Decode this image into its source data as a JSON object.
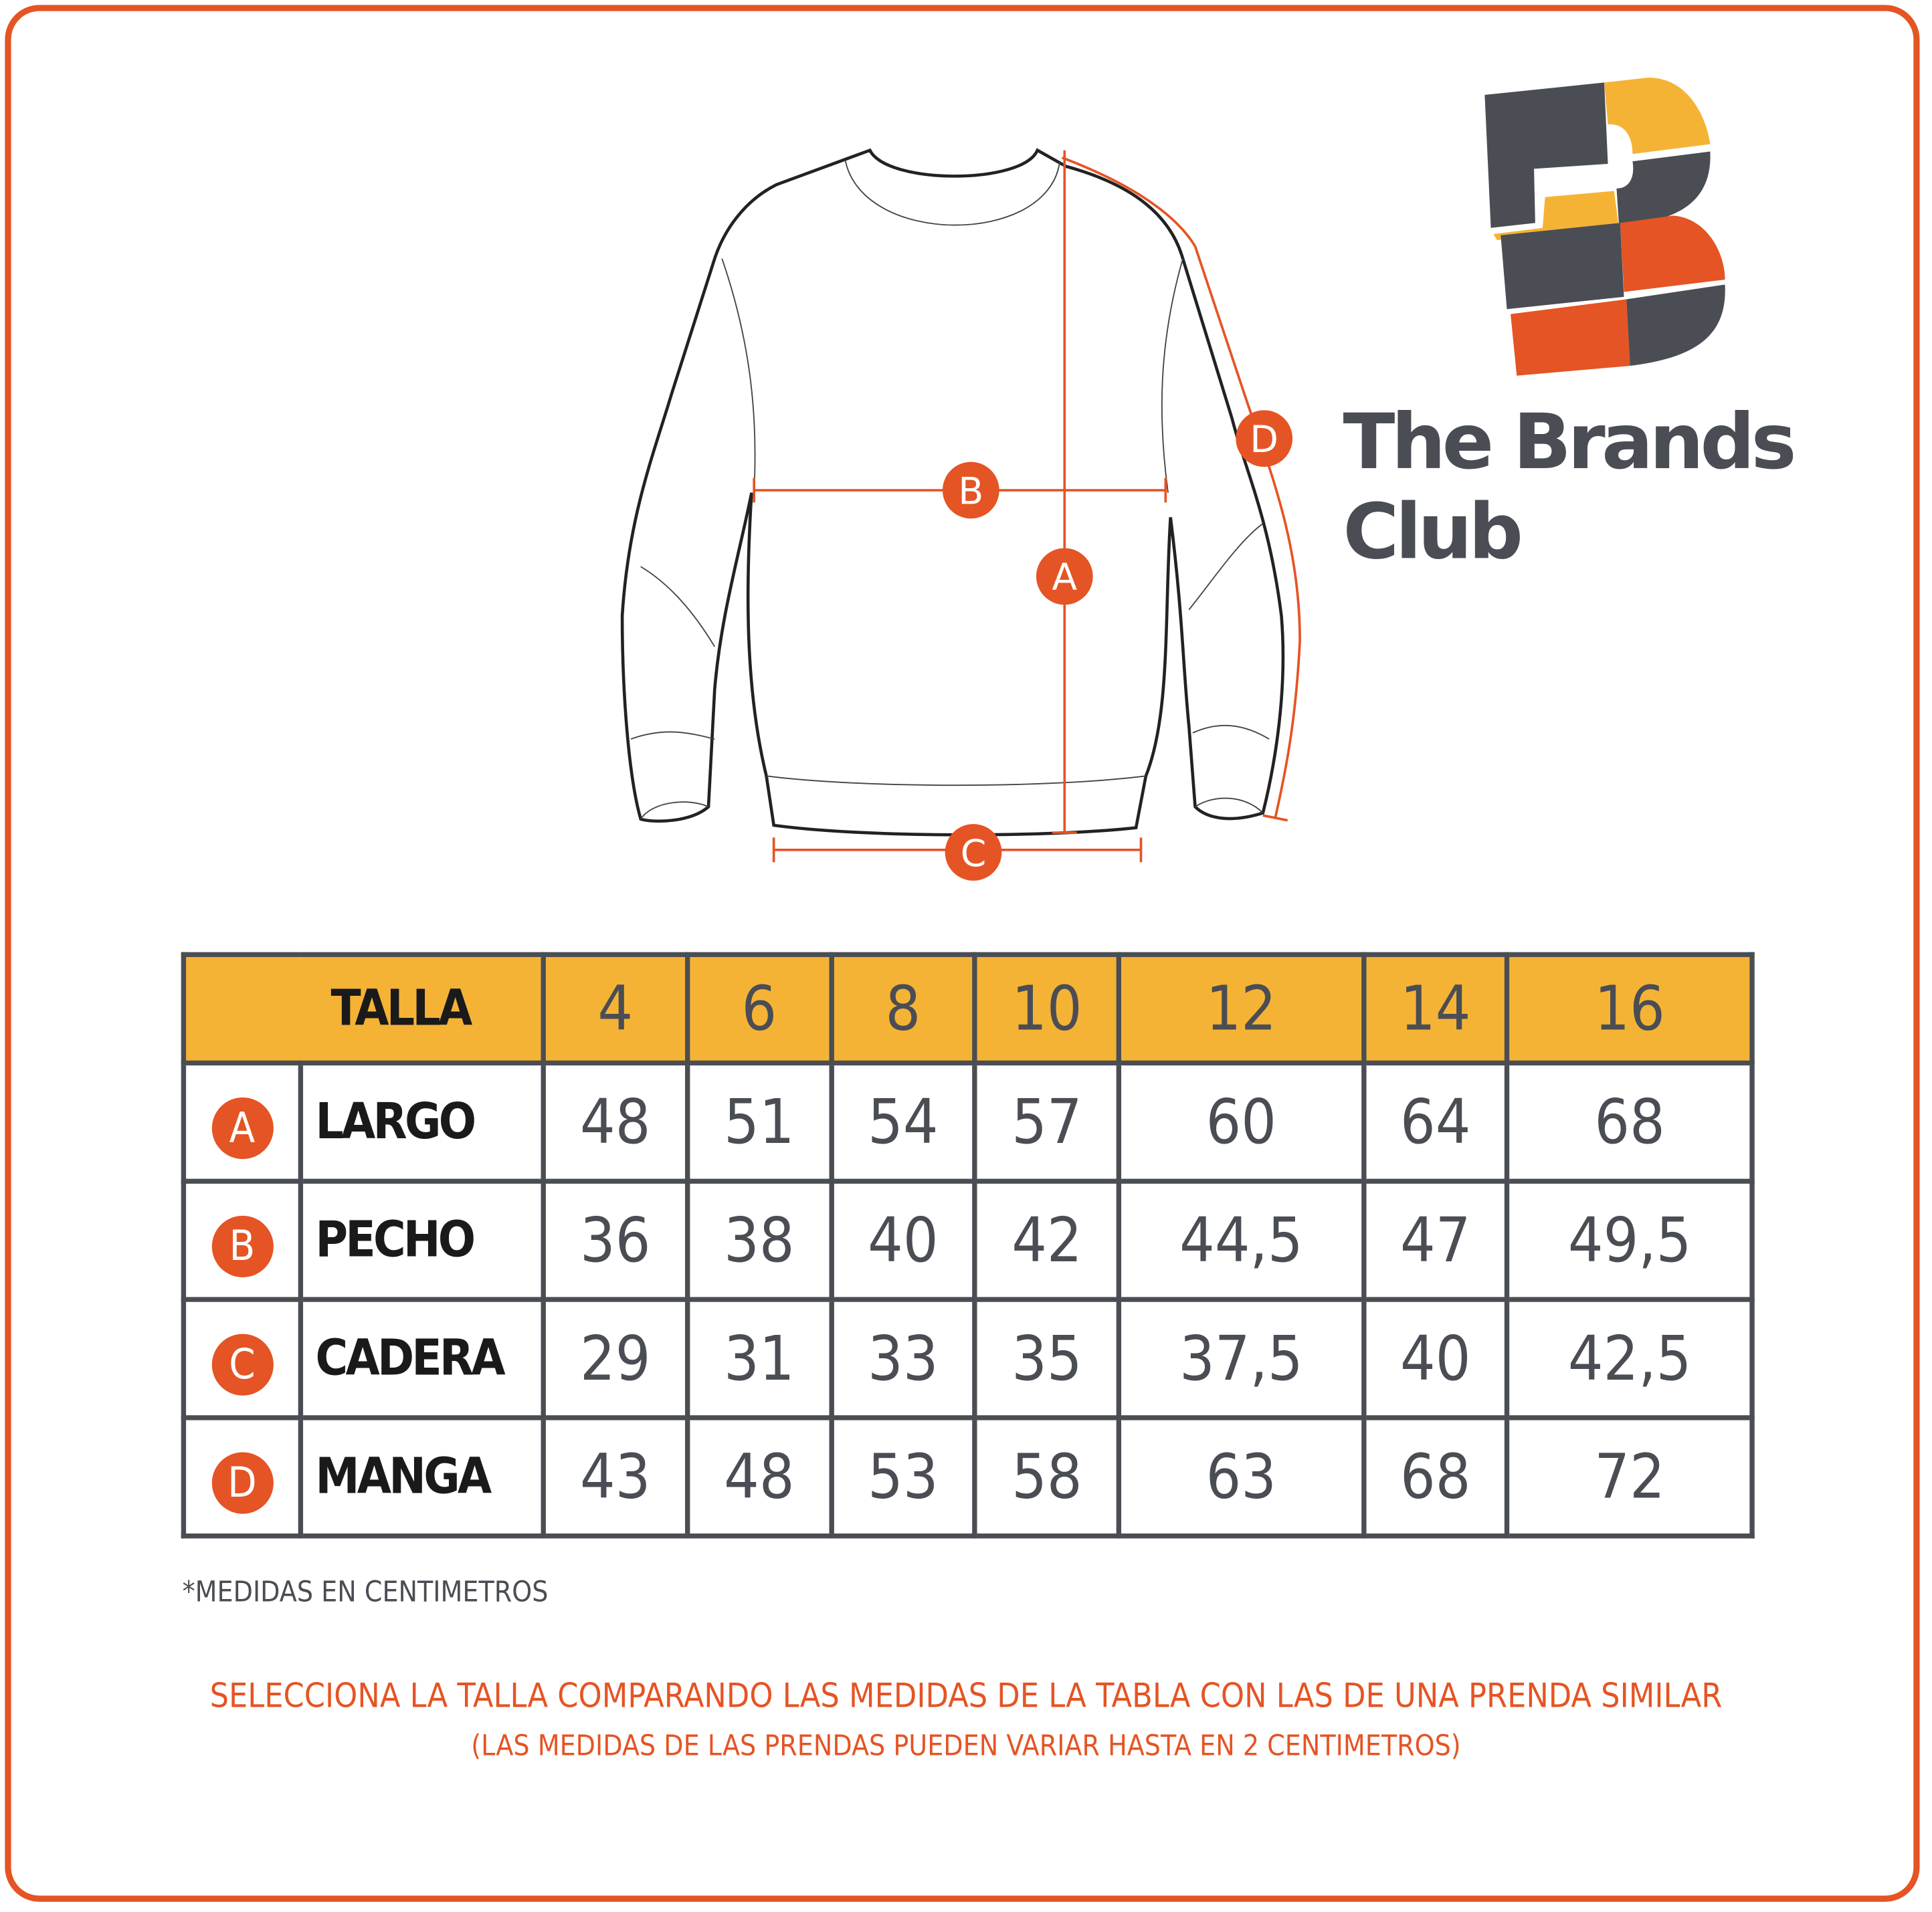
{
  "brand": {
    "name": "The Brands Club",
    "colors": {
      "orange": "#e55424",
      "yellow": "#f5b335",
      "gray": "#4a4d54"
    }
  },
  "diagram": {
    "markers": [
      "A",
      "B",
      "C",
      "D"
    ]
  },
  "table": {
    "header_label": "TALLA",
    "sizes": [
      "4",
      "6",
      "8",
      "10",
      "12",
      "14",
      "16"
    ],
    "rows": [
      {
        "marker": "A",
        "label": "LARGO",
        "values": [
          "48",
          "51",
          "54",
          "57",
          "60",
          "64",
          "68"
        ]
      },
      {
        "marker": "B",
        "label": "PECHO",
        "values": [
          "36",
          "38",
          "40",
          "42",
          "44,5",
          "47",
          "49,5"
        ]
      },
      {
        "marker": "C",
        "label": "CADERA",
        "values": [
          "29",
          "31",
          "33",
          "35",
          "37,5",
          "40",
          "42,5"
        ]
      },
      {
        "marker": "D",
        "label": "MANGA",
        "values": [
          "43",
          "48",
          "53",
          "58",
          "63",
          "68",
          "72"
        ]
      }
    ]
  },
  "footnote": "*MEDIDAS EN CENTIMETROS",
  "instructions": {
    "line1": "SELECCIONA LA TALLA COMPARANDO LAS MEDIDAS DE LA TABLA CON LAS DE UNA PRENDA SIMILAR",
    "line2": "(LAS MEDIDAS DE LAS PRENDAS PUEDEN VARIAR HASTA EN 2 CENTIMETROS)"
  }
}
